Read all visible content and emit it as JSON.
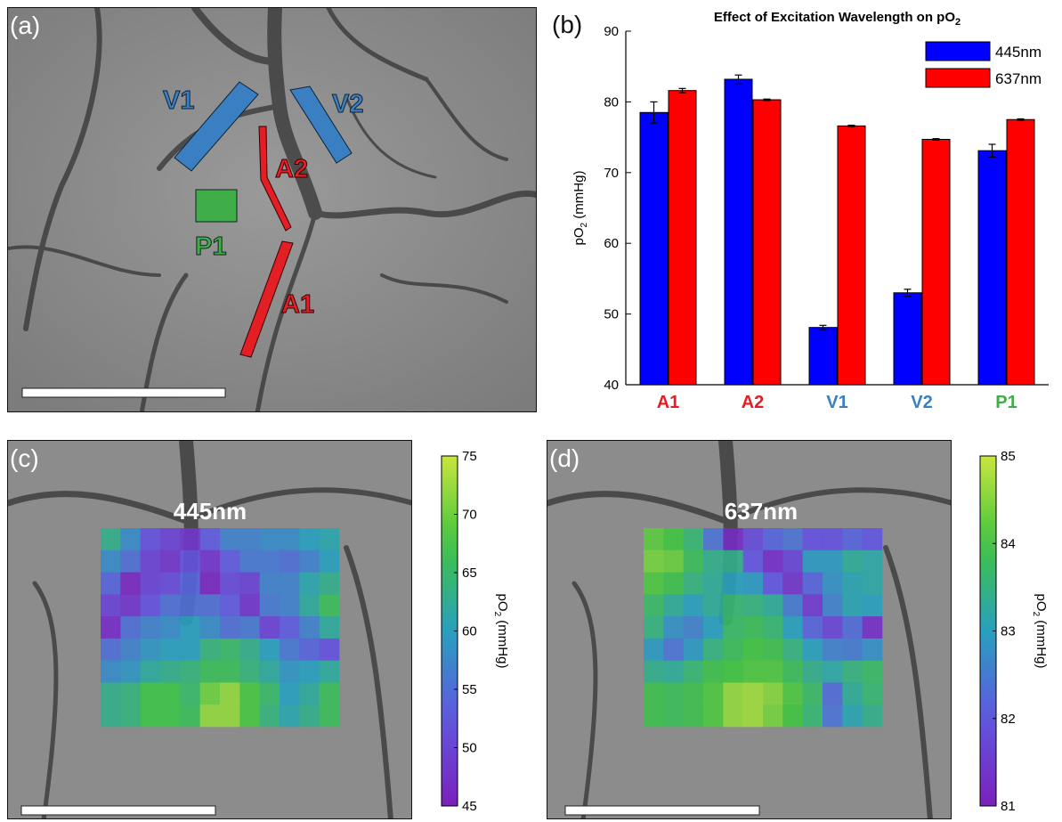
{
  "panels": {
    "a": {
      "label": "(a)"
    },
    "b": {
      "label": "(b)"
    },
    "c": {
      "label": "(c)",
      "title": "445nm"
    },
    "d": {
      "label": "(d)",
      "title": "637nm"
    }
  },
  "roi_labels": {
    "v1": "V1",
    "v2": "V2",
    "a1": "A1",
    "a2": "A2",
    "p1": "P1"
  },
  "colors": {
    "artery": "#e31e24",
    "vein": "#3a7fc1",
    "parenchyma": "#3fae49",
    "bar_445": "#0000ff",
    "bar_637": "#ff0000"
  },
  "chart_data": [
    {
      "type": "bar",
      "title": "Effect of Excitation Wavelength on pO2",
      "ylabel": "pO2 (mmHg)",
      "xlabel": "",
      "categories": [
        "A1",
        "A2",
        "V1",
        "V2",
        "P1"
      ],
      "category_colors": [
        "#e31e24",
        "#e31e24",
        "#3a7fc1",
        "#3a7fc1",
        "#3fae49"
      ],
      "ylim": [
        40,
        90
      ],
      "yticks": [
        40,
        50,
        60,
        70,
        80,
        90
      ],
      "legend_position": "top-right",
      "series": [
        {
          "name": "445nm",
          "color": "#0000ff",
          "values": [
            78.5,
            83.2,
            48.1,
            53.0,
            73.1
          ],
          "errors": [
            1.5,
            0.6,
            0.3,
            0.5,
            0.9
          ]
        },
        {
          "name": "637nm",
          "color": "#ff0000",
          "values": [
            81.6,
            80.3,
            76.6,
            74.7,
            77.5
          ],
          "errors": [
            0.3,
            0.1,
            0.1,
            0.1,
            0.1
          ]
        }
      ]
    },
    {
      "type": "heatmap",
      "title": "445nm",
      "colorbar_label": "pO2 (mmHg)",
      "colorbar_range": [
        45,
        75
      ],
      "colorbar_ticks": [
        45,
        50,
        55,
        60,
        65,
        70,
        75
      ],
      "grid": [
        [
          63,
          58,
          52,
          50,
          48,
          53,
          57,
          57,
          58,
          58,
          60,
          61
        ],
        [
          58,
          55,
          50,
          48,
          52,
          48,
          53,
          56,
          56,
          55,
          57,
          60
        ],
        [
          54,
          46,
          50,
          51,
          54,
          46,
          51,
          50,
          57,
          57,
          61,
          63
        ],
        [
          50,
          48,
          52,
          55,
          55,
          55,
          53,
          48,
          56,
          57,
          62,
          66
        ],
        [
          47,
          55,
          57,
          58,
          60,
          58,
          55,
          56,
          50,
          53,
          57,
          62
        ],
        [
          55,
          57,
          59,
          60,
          60,
          64,
          65,
          63,
          60,
          56,
          54,
          52
        ],
        [
          58,
          59,
          62,
          63,
          64,
          66,
          66,
          64,
          62,
          59,
          60,
          62
        ],
        [
          63,
          64,
          67,
          67,
          65,
          70,
          72,
          68,
          65,
          60,
          62,
          66
        ],
        [
          63,
          64,
          67,
          67,
          66,
          72,
          72,
          68,
          64,
          61,
          63,
          66
        ]
      ]
    },
    {
      "type": "heatmap",
      "title": "637nm",
      "colorbar_label": "pO2 (mmHg)",
      "colorbar_range": [
        81,
        85
      ],
      "colorbar_ticks": [
        81,
        82,
        83,
        84,
        85
      ],
      "grid": [
        [
          84.2,
          84.0,
          83.6,
          82.4,
          81.2,
          81.8,
          82.2,
          82.4,
          81.9,
          81.9,
          82.2,
          82.0
        ],
        [
          84.4,
          84.3,
          83.8,
          83.4,
          83.4,
          82.0,
          81.3,
          81.7,
          82.9,
          82.9,
          83.3,
          83.2
        ],
        [
          84.1,
          83.9,
          83.5,
          83.3,
          83.0,
          82.9,
          82.0,
          81.4,
          82.2,
          82.8,
          83.1,
          83.2
        ],
        [
          83.7,
          83.3,
          83.0,
          83.3,
          83.6,
          83.5,
          83.3,
          82.5,
          81.5,
          82.6,
          83.1,
          83.0
        ],
        [
          83.5,
          82.8,
          82.6,
          83.0,
          83.7,
          83.8,
          83.6,
          83.0,
          82.2,
          81.7,
          82.3,
          81.3
        ],
        [
          82.9,
          82.4,
          82.9,
          83.5,
          83.8,
          84.0,
          83.9,
          83.5,
          83.0,
          82.6,
          82.5,
          82.8
        ],
        [
          83.4,
          83.3,
          83.6,
          83.9,
          84.0,
          84.1,
          84.1,
          83.8,
          83.4,
          83.2,
          83.5,
          83.7
        ],
        [
          83.9,
          83.8,
          83.9,
          84.1,
          84.6,
          84.7,
          84.5,
          84.1,
          83.7,
          82.3,
          83.3,
          83.6
        ],
        [
          83.9,
          83.8,
          83.9,
          84.1,
          84.6,
          84.7,
          84.4,
          84.0,
          83.6,
          82.4,
          83.1,
          83.4
        ]
      ]
    }
  ]
}
